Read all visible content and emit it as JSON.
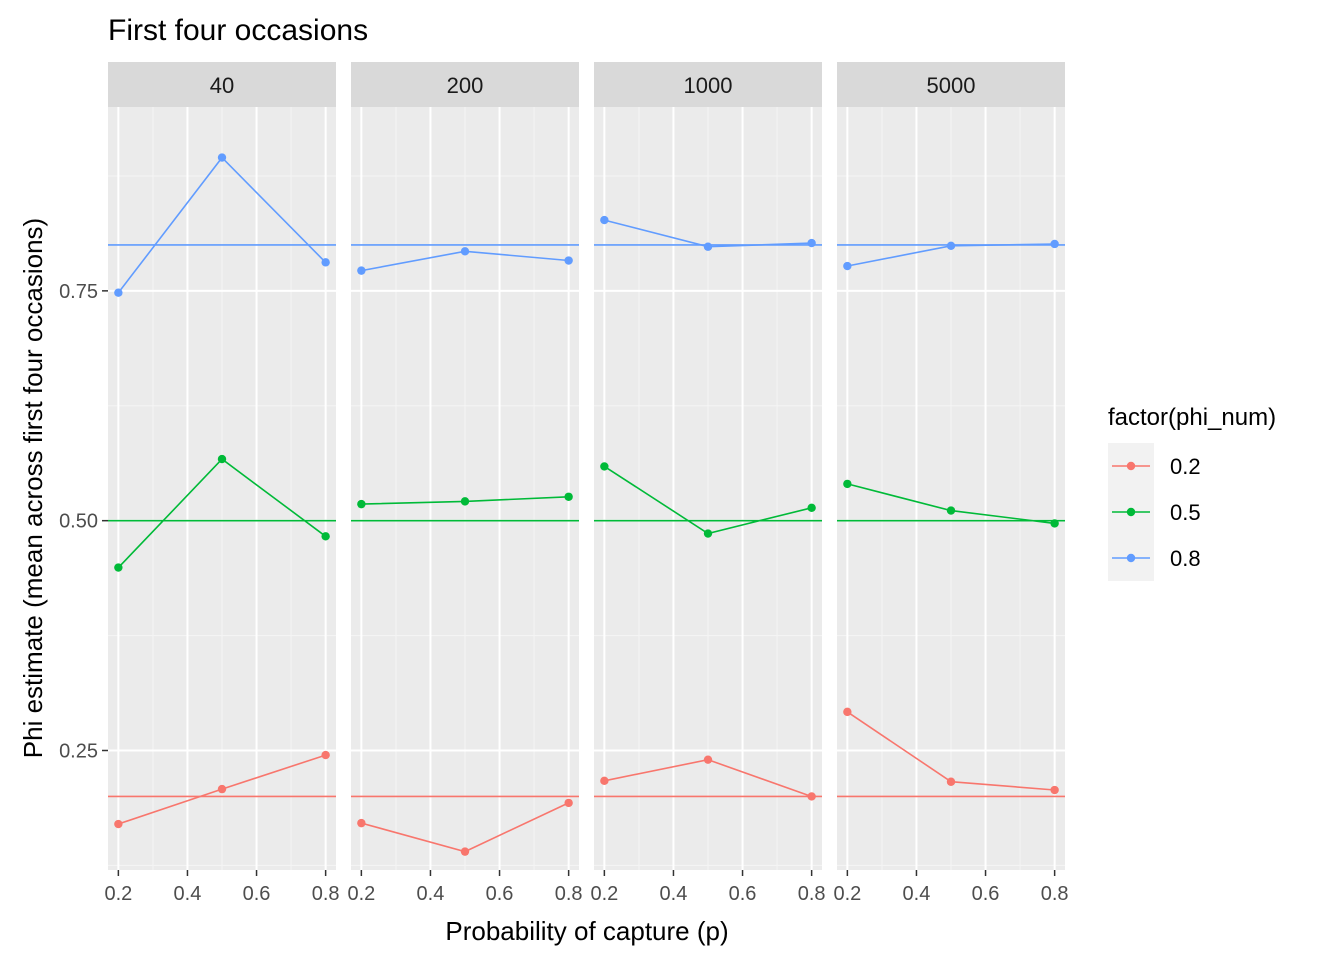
{
  "chart_data": {
    "type": "line",
    "title": "First four occasions",
    "xlabel": "Probability of capture (p)",
    "ylabel": "Phi estimate (mean across first four occasions)",
    "xlim": [
      0.2,
      0.8
    ],
    "ylim": [
      0.12,
      0.95
    ],
    "x_ticks": [
      0.2,
      0.4,
      0.6,
      0.8
    ],
    "x_tick_labels": [
      "0.2",
      "0.4",
      "0.6",
      "0.8"
    ],
    "y_ticks": [
      0.25,
      0.5,
      0.75
    ],
    "y_tick_labels": [
      "0.25",
      "0.50",
      "0.75"
    ],
    "legend": {
      "title": "factor(phi_num)",
      "position": "right",
      "entries": [
        {
          "label": "0.2",
          "color": "#F8766D"
        },
        {
          "label": "0.5",
          "color": "#00BA38"
        },
        {
          "label": "0.8",
          "color": "#619CFF"
        }
      ]
    },
    "reference_lines": [
      {
        "y": 0.2,
        "color": "#F8766D"
      },
      {
        "y": 0.5,
        "color": "#00BA38"
      },
      {
        "y": 0.8,
        "color": "#619CFF"
      }
    ],
    "x": [
      0.2,
      0.5,
      0.8
    ],
    "panels": [
      {
        "label": "40",
        "series": [
          {
            "name": "0.2",
            "color": "#F8766D",
            "values": [
              0.17,
              0.208,
              0.245
            ]
          },
          {
            "name": "0.5",
            "color": "#00BA38",
            "values": [
              0.449,
              0.567,
              0.483
            ]
          },
          {
            "name": "0.8",
            "color": "#619CFF",
            "values": [
              0.748,
              0.895,
              0.781
            ]
          }
        ]
      },
      {
        "label": "200",
        "series": [
          {
            "name": "0.2",
            "color": "#F8766D",
            "values": [
              0.171,
              0.14,
              0.193
            ]
          },
          {
            "name": "0.5",
            "color": "#00BA38",
            "values": [
              0.518,
              0.521,
              0.526
            ]
          },
          {
            "name": "0.8",
            "color": "#619CFF",
            "values": [
              0.772,
              0.793,
              0.783
            ]
          }
        ]
      },
      {
        "label": "1000",
        "series": [
          {
            "name": "0.2",
            "color": "#F8766D",
            "values": [
              0.217,
              0.24,
              0.2
            ]
          },
          {
            "name": "0.5",
            "color": "#00BA38",
            "values": [
              0.559,
              0.486,
              0.514
            ]
          },
          {
            "name": "0.8",
            "color": "#619CFF",
            "values": [
              0.827,
              0.798,
              0.802
            ]
          }
        ]
      },
      {
        "label": "5000",
        "series": [
          {
            "name": "0.2",
            "color": "#F8766D",
            "values": [
              0.292,
              0.216,
              0.207
            ]
          },
          {
            "name": "0.5",
            "color": "#00BA38",
            "values": [
              0.54,
              0.511,
              0.497
            ]
          },
          {
            "name": "0.8",
            "color": "#619CFF",
            "values": [
              0.777,
              0.799,
              0.801
            ]
          }
        ]
      }
    ]
  }
}
